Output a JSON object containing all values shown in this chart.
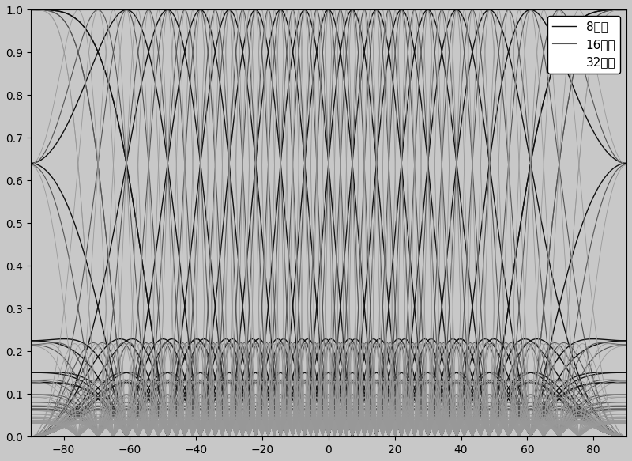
{
  "title": "",
  "xlabel": "",
  "ylabel": "",
  "xlim": [
    -90,
    90
  ],
  "ylim": [
    0,
    1
  ],
  "xticks": [
    -80,
    -60,
    -40,
    -20,
    0,
    20,
    40,
    60,
    80
  ],
  "yticks": [
    0,
    0.1,
    0.2,
    0.3,
    0.4,
    0.5,
    0.6,
    0.7,
    0.8,
    0.9,
    1
  ],
  "arrays": [
    8,
    16,
    32
  ],
  "colors": [
    "#111111",
    "#555555",
    "#999999"
  ],
  "linewidths": [
    1.0,
    0.8,
    0.6
  ],
  "legend_labels": [
    "8阵元",
    "16阵元",
    "32阵元"
  ],
  "background_color": "#c8c8c8",
  "legend_fontsize": 11,
  "tick_fontsize": 10,
  "d_lambda": 0.5
}
